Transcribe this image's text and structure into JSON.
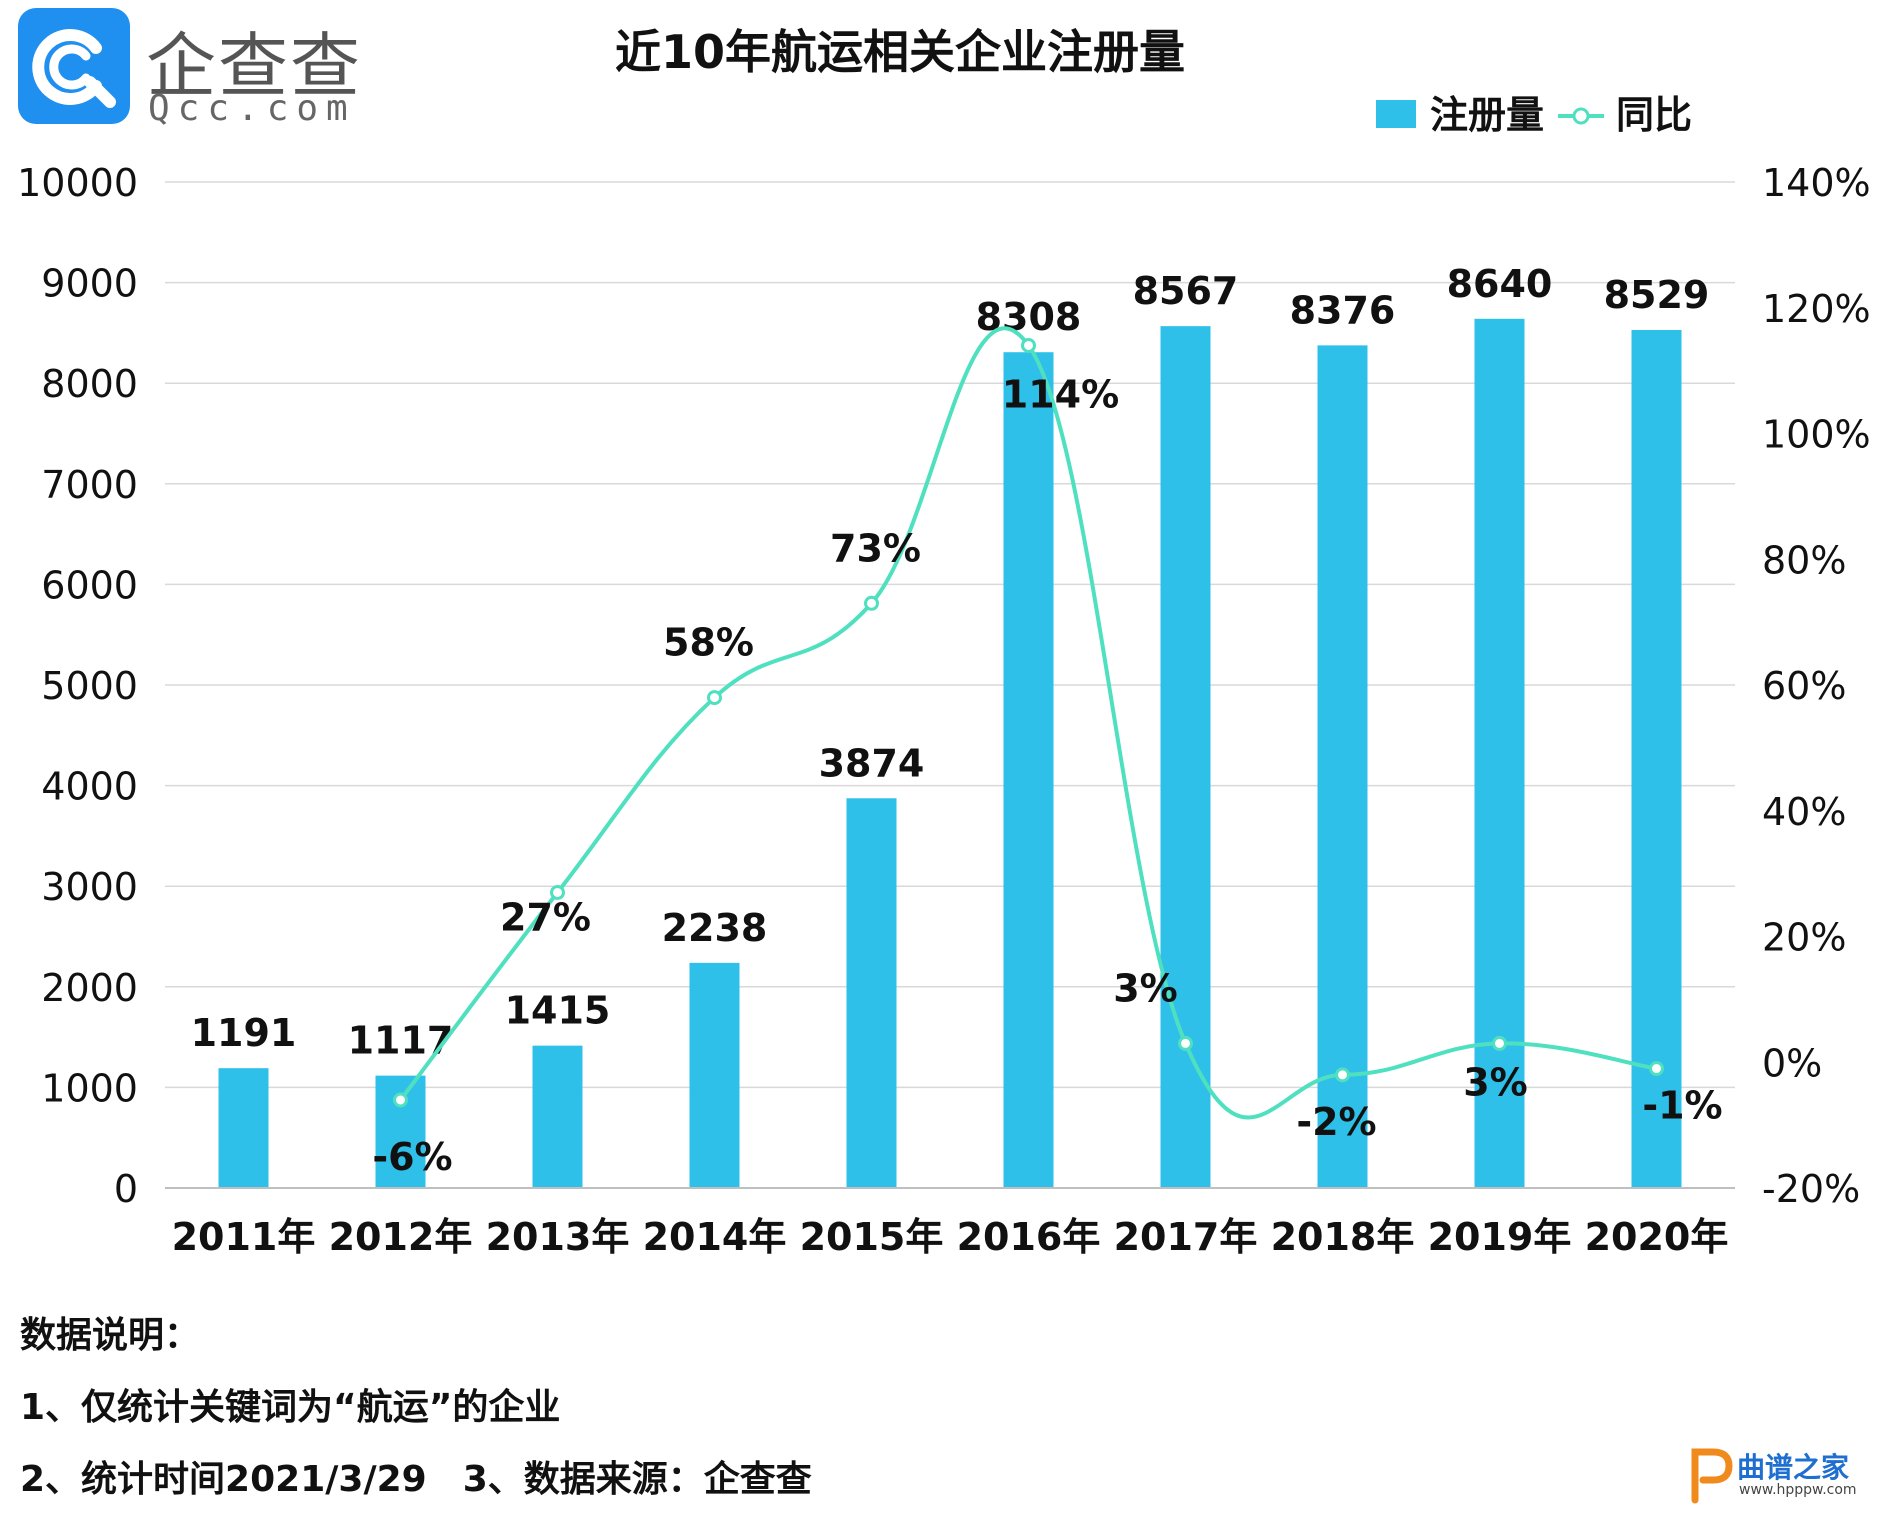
{
  "brand": {
    "name_cn": "企查查",
    "name_en": "Qcc.com",
    "color": "#1f8ff0"
  },
  "colors": {
    "bar": "#2ec0e8",
    "line": "#4fe0c0",
    "grid": "#d9d9d9",
    "text": "#111111"
  },
  "chart_data": {
    "type": "bar",
    "title": "近10年航运相关企业注册量",
    "categories": [
      "2011年",
      "2012年",
      "2013年",
      "2014年",
      "2015年",
      "2016年",
      "2017年",
      "2018年",
      "2019年",
      "2020年"
    ],
    "series": [
      {
        "name": "注册量",
        "type": "bar",
        "axis": "left",
        "values": [
          1191,
          1117,
          1415,
          2238,
          3874,
          8308,
          8567,
          8376,
          8640,
          8529
        ],
        "labels": [
          "1191",
          "1117",
          "1415",
          "2238",
          "3874",
          "8308",
          "8567",
          "8376",
          "8640",
          "8529"
        ]
      },
      {
        "name": "同比",
        "type": "line",
        "axis": "right",
        "smooth": true,
        "values": [
          null,
          -6,
          27,
          58,
          73,
          114,
          3,
          -2,
          3,
          -1
        ],
        "labels": [
          "",
          "-6%",
          "27%",
          "58%",
          "73%",
          "114%",
          "3%",
          "-2%",
          "3%",
          "-1%"
        ]
      }
    ],
    "y_left": {
      "lim": [
        0,
        10000
      ],
      "ticks": [
        "0",
        "1000",
        "2000",
        "3000",
        "4000",
        "5000",
        "6000",
        "7000",
        "8000",
        "9000",
        "10000"
      ]
    },
    "y_right": {
      "lim": [
        -20,
        140
      ],
      "ticks": [
        "-20%",
        "0%",
        "20%",
        "40%",
        "60%",
        "80%",
        "100%",
        "120%",
        "140%"
      ]
    },
    "legend": {
      "position": "top-right",
      "entries": [
        "注册量",
        "同比"
      ]
    },
    "grid": true
  },
  "notes": {
    "title": "数据说明：",
    "line1": "1、仅统计关键词为“航运”的企业",
    "line2": "2、统计时间2021/3/29　3、数据来源：企查查"
  },
  "watermark": {
    "text": "曲谱之家",
    "url": "www.hpppw.com"
  }
}
